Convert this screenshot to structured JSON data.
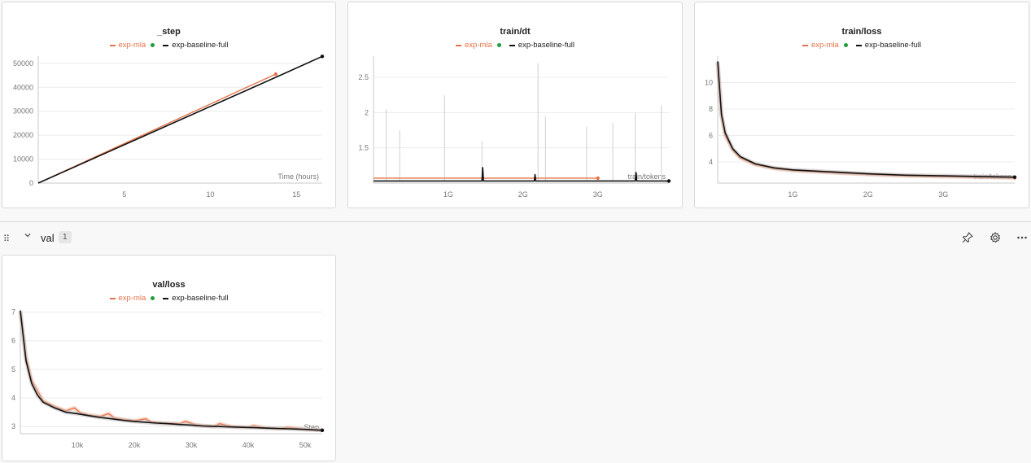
{
  "legend": {
    "mla": "exp-mla",
    "baseline": "exp-baseline-full"
  },
  "colors": {
    "mla": "#e8734a",
    "baseline": "#111111",
    "running": "#1e9e3a",
    "grid": "#ececec",
    "axis": "#c8c8c8",
    "tick": "#777777"
  },
  "section": {
    "name": "val",
    "count": "1",
    "icons": [
      "pin-icon",
      "gear-icon",
      "more-icon"
    ]
  },
  "chart_data": [
    {
      "id": "step",
      "type": "line",
      "title": "_step",
      "xlabel": "Time (hours)",
      "xlim": [
        0,
        16.5
      ],
      "ylim": [
        0,
        53000
      ],
      "xticks": [
        5,
        10,
        15
      ],
      "yticks": [
        0,
        10000,
        20000,
        30000,
        40000,
        50000
      ],
      "xtick_labels": [
        "5",
        "10",
        "15"
      ],
      "ytick_labels": [
        "0",
        "10000",
        "20000",
        "30000",
        "40000",
        "50000"
      ],
      "series": [
        {
          "name": "exp-mla",
          "x": [
            0,
            2,
            4,
            6,
            8,
            10,
            12,
            13.8
          ],
          "y": [
            0,
            6600,
            13200,
            19800,
            26400,
            33000,
            39600,
            45500
          ]
        },
        {
          "name": "exp-baseline-full",
          "x": [
            0,
            2,
            4,
            6,
            8,
            10,
            12,
            14,
            16.5
          ],
          "y": [
            0,
            6400,
            12800,
            19200,
            25600,
            32000,
            38400,
            44800,
            52900
          ]
        }
      ]
    },
    {
      "id": "dt",
      "type": "line",
      "title": "train/dt",
      "xlabel": "train/tokens",
      "xlim": [
        0,
        3.95
      ],
      "ylim": [
        1.0,
        2.8
      ],
      "xticks": [
        1,
        2,
        3
      ],
      "yticks": [
        1.5,
        2,
        2.5
      ],
      "xtick_labels": [
        "1G",
        "2G",
        "3G"
      ],
      "ytick_labels": [
        "1.5",
        "2",
        "2.5"
      ],
      "spikes": [
        {
          "x": 0.17,
          "y": 2.05
        },
        {
          "x": 0.35,
          "y": 1.75
        },
        {
          "x": 0.95,
          "y": 2.25
        },
        {
          "x": 1.45,
          "y": 1.6
        },
        {
          "x": 2.2,
          "y": 2.7
        },
        {
          "x": 2.3,
          "y": 1.95
        },
        {
          "x": 2.85,
          "y": 1.8
        },
        {
          "x": 3.2,
          "y": 1.85
        },
        {
          "x": 3.5,
          "y": 2.0
        },
        {
          "x": 3.85,
          "y": 2.1
        }
      ],
      "series": [
        {
          "name": "exp-mla",
          "x": [
            0,
            0.5,
            1.0,
            1.5,
            2.0,
            2.5,
            3.0
          ],
          "y": [
            1.07,
            1.07,
            1.07,
            1.07,
            1.07,
            1.07,
            1.07
          ]
        },
        {
          "name": "exp-baseline-full",
          "x": [
            0,
            1.0,
            1.45,
            1.46,
            1.47,
            2.0,
            2.15,
            2.16,
            2.17,
            3.0,
            3.5,
            3.51,
            3.52,
            3.95
          ],
          "y": [
            1.03,
            1.03,
            1.03,
            1.22,
            1.03,
            1.03,
            1.03,
            1.12,
            1.03,
            1.03,
            1.03,
            1.15,
            1.03,
            1.03
          ]
        }
      ]
    },
    {
      "id": "loss",
      "type": "line",
      "title": "train/loss",
      "xlabel": "train/tokens",
      "xlim": [
        0,
        3.95
      ],
      "ylim": [
        2.4,
        12.0
      ],
      "xticks": [
        1,
        2,
        3
      ],
      "yticks": [
        4,
        6,
        8,
        10
      ],
      "xtick_labels": [
        "1G",
        "2G",
        "3G"
      ],
      "ytick_labels": [
        "4",
        "6",
        "8",
        "10"
      ],
      "series": [
        {
          "name": "exp-mla",
          "x": [
            0,
            0.05,
            0.1,
            0.2,
            0.3,
            0.5,
            0.75,
            1.0,
            1.5,
            2.0,
            2.5,
            3.0,
            3.5,
            3.95
          ],
          "y": [
            11.5,
            7.5,
            6.0,
            4.9,
            4.3,
            3.8,
            3.5,
            3.35,
            3.2,
            3.05,
            2.95,
            2.9,
            2.85,
            2.8
          ]
        },
        {
          "name": "exp-baseline-full",
          "x": [
            0,
            0.05,
            0.1,
            0.2,
            0.3,
            0.5,
            0.75,
            1.0,
            1.5,
            2.0,
            2.5,
            3.0,
            3.5,
            3.95
          ],
          "y": [
            11.6,
            7.6,
            6.2,
            5.0,
            4.4,
            3.85,
            3.55,
            3.4,
            3.25,
            3.1,
            3.0,
            2.95,
            2.9,
            2.85
          ]
        }
      ]
    },
    {
      "id": "val",
      "type": "line",
      "title": "val/loss",
      "xlabel": "Step",
      "xlim": [
        0,
        53000
      ],
      "ylim": [
        2.75,
        7.1
      ],
      "xticks": [
        10000,
        20000,
        30000,
        40000,
        50000
      ],
      "yticks": [
        3,
        4,
        5,
        6,
        7
      ],
      "xtick_labels": [
        "10k",
        "20k",
        "30k",
        "40k",
        "50k"
      ],
      "ytick_labels": [
        "3",
        "4",
        "5",
        "6",
        "7"
      ],
      "series": [
        {
          "name": "exp-mla",
          "x": [
            0,
            1000,
            2000,
            3000,
            4000,
            6000,
            8000,
            9500,
            10500,
            12000,
            14000,
            15500,
            16500,
            18000,
            20000,
            22000,
            23000,
            25000,
            28000,
            29000,
            31000,
            34000,
            35000,
            37000,
            40000,
            41000,
            43000,
            45500,
            47000,
            50000,
            53000
          ],
          "y": [
            7.0,
            5.4,
            4.6,
            4.25,
            3.9,
            3.7,
            3.55,
            3.65,
            3.48,
            3.4,
            3.35,
            3.45,
            3.3,
            3.25,
            3.2,
            3.27,
            3.15,
            3.12,
            3.1,
            3.18,
            3.05,
            3.0,
            3.1,
            3.0,
            2.97,
            3.03,
            2.95,
            2.93,
            2.97,
            2.9,
            2.87
          ]
        },
        {
          "name": "exp-baseline-full",
          "x": [
            0,
            1000,
            2000,
            3000,
            4000,
            6000,
            8000,
            10000,
            12000,
            14000,
            16000,
            18000,
            20000,
            22000,
            24000,
            26000,
            28000,
            30000,
            32000,
            35000,
            38000,
            41000,
            44000,
            47000,
            50000,
            53000
          ],
          "y": [
            7.05,
            5.3,
            4.5,
            4.1,
            3.85,
            3.65,
            3.5,
            3.45,
            3.38,
            3.32,
            3.27,
            3.22,
            3.18,
            3.15,
            3.12,
            3.1,
            3.07,
            3.05,
            3.02,
            3.0,
            2.98,
            2.96,
            2.94,
            2.92,
            2.9,
            2.87
          ]
        }
      ]
    }
  ]
}
